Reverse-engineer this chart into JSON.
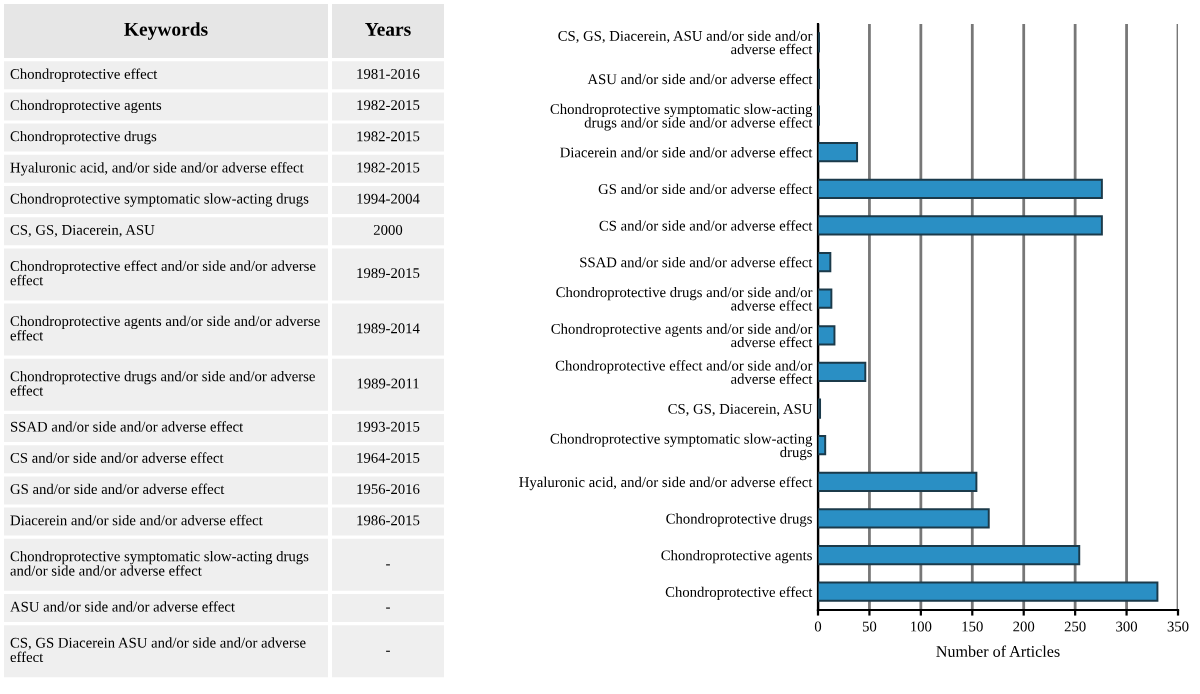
{
  "chart_data": [
    {
      "type": "other",
      "annotations": [
        "Keywords",
        "Years",
        "Chondroprotective effect",
        "1981-2016",
        "Chondroprotective agents",
        "1982-2015",
        "Chondroprotective drugs",
        "1982-2015",
        "Hyaluronic acid, and/or side and/or adverse effect",
        "1982-2015",
        "Chondroprotective symptomatic slow-acting drugs",
        "1994-2004",
        "CS, GS, Diacerein, ASU",
        "2000",
        "Chondroprotective effect and/or side and/or adverse effect",
        "1989-2015",
        "Chondroprotective agents and/or side and/or adverse effect",
        "1989-2014",
        "Chondroprotective drugs and/or side and/or adverse effect",
        "1989-2011",
        "SSAD and/or side and/or adverse effect",
        "1993-2015",
        "CS and/or side and/or adverse effect",
        "1964-2015",
        "GS and/or side and/or adverse effect",
        "1956-2016",
        "Diacerein and/or side and/or adverse effect",
        "1986-2015",
        "Chondroprotective symptomatic slow-acting drugs and/or side and/or adverse effect",
        "-",
        "ASU and/or side and/or adverse effect",
        "-",
        "CS, GS Diacerein ASU and/or side and/or adverse effect",
        "-"
      ]
    },
    {
      "type": "bar",
      "orientation": "horizontal",
      "xlabel": "Number of Articles",
      "categories": [
        "CS, GS, Diacerein, ASU and/or side and/or adverse effect",
        "ASU and/or side and/or adverse effect",
        "Chondroprotective symptomatic slow-acting drugs and/or side and/or adverse effect",
        "Diacerein and/or side and/or adverse effect",
        "GS and/or side and/or adverse effect",
        "CS and/or side and/or adverse effect",
        "SSAD and/or side and/or adverse effect",
        "Chondroprotective drugs and/or side and/or adverse effect",
        "Chondroprotective agents and/or side and/or adverse effect",
        "Chondroprotective effect and/or side and/or adverse effect",
        "CS, GS, Diacerein, ASU",
        "Chondroprotective symptomatic slow-acting drugs",
        "Hyaluronic acid, and/or side and/or adverse effect",
        "Chondroprotective drugs",
        "Chondroprotective agents",
        "Chondroprotective effect"
      ],
      "values": [
        1,
        1,
        1,
        38,
        276,
        276,
        12,
        13,
        16,
        46,
        2,
        7,
        154,
        166,
        254,
        330
      ],
      "color": "#2a8fc4",
      "xlim": [
        0,
        350
      ],
      "xticks": [
        0,
        50,
        100,
        150,
        200,
        250,
        300,
        350
      ],
      "grid": "x"
    }
  ]
}
